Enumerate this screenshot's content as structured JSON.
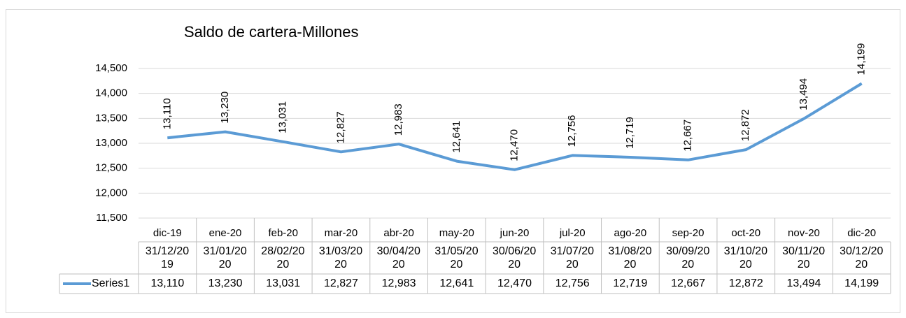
{
  "chart_data": {
    "type": "line",
    "title": "Saldo de cartera-Millones",
    "categories": [
      "dic-19",
      "ene-20",
      "feb-20",
      "mar-20",
      "abr-20",
      "may-20",
      "jun-20",
      "jul-20",
      "ago-20",
      "sep-20",
      "oct-20",
      "nov-20",
      "dic-20"
    ],
    "dates": [
      "31/12/2019",
      "31/01/2020",
      "28/02/2020",
      "31/03/2020",
      "30/04/2020",
      "31/05/2020",
      "30/06/2020",
      "31/07/2020",
      "31/08/2020",
      "30/09/2020",
      "31/10/2020",
      "30/11/2020",
      "30/12/2020"
    ],
    "series": [
      {
        "name": "Series1",
        "color": "#5b9bd5",
        "values": [
          13110,
          13230,
          13031,
          12827,
          12983,
          12641,
          12470,
          12756,
          12719,
          12667,
          12872,
          13494,
          14199
        ],
        "value_labels": [
          "13,110",
          "13,230",
          "13,031",
          "12,827",
          "12,983",
          "12,641",
          "12,470",
          "12,756",
          "12,719",
          "12,667",
          "12,872",
          "13,494",
          "14,199"
        ]
      }
    ],
    "ylim": [
      11500,
      14500
    ],
    "yticks": [
      {
        "value": 11500,
        "label": "11,500"
      },
      {
        "value": 12000,
        "label": "12,000"
      },
      {
        "value": 12500,
        "label": "12,500"
      },
      {
        "value": 13000,
        "label": "13,000"
      },
      {
        "value": 13500,
        "label": "13,500"
      },
      {
        "value": 14000,
        "label": "14,000"
      },
      {
        "value": 14500,
        "label": "14,500"
      }
    ],
    "grid": true
  }
}
